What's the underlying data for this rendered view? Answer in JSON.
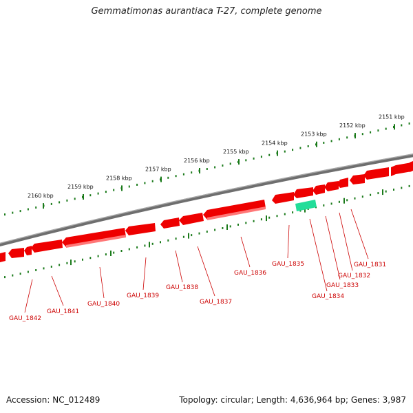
{
  "title": "Gemmatimonas aurantiaca T-27, complete genome",
  "footer": {
    "accession": "Accession: NC_012489",
    "summary": "Topology: circular; Length: 4,636,964 bp; Genes: 3,987"
  },
  "colors": {
    "backbone": "#7a7a7a",
    "gene": "#ee0000",
    "gene_highlight": "#ff6666",
    "rna_gene": "#22dd99",
    "ticks": "#1a7a1a",
    "labels": "#cc0000"
  },
  "scale": {
    "unit": "kbp",
    "ticks": [
      {
        "kbp": 2151,
        "label": "2151 kbp"
      },
      {
        "kbp": 2152,
        "label": "2152 kbp"
      },
      {
        "kbp": 2153,
        "label": "2153 kbp"
      },
      {
        "kbp": 2154,
        "label": "2154 kbp"
      },
      {
        "kbp": 2155,
        "label": "2155 kbp"
      },
      {
        "kbp": 2156,
        "label": "2156 kbp"
      },
      {
        "kbp": 2157,
        "label": "2157 kbp"
      },
      {
        "kbp": 2158,
        "label": "2158 kbp"
      },
      {
        "kbp": 2159,
        "label": "2159 kbp"
      },
      {
        "kbp": 2160,
        "label": "2160 kbp"
      }
    ]
  },
  "genes": [
    {
      "label": "GAU_1831",
      "type": "cds"
    },
    {
      "label": "GAU_1832",
      "type": "cds"
    },
    {
      "label": "GAU_1833",
      "type": "cds"
    },
    {
      "label": "GAU_1834",
      "type": "rna"
    },
    {
      "label": "GAU_1835",
      "type": "cds"
    },
    {
      "label": "GAU_1836",
      "type": "cds"
    },
    {
      "label": "GAU_1837",
      "type": "cds"
    },
    {
      "label": "GAU_1838",
      "type": "cds"
    },
    {
      "label": "GAU_1839",
      "type": "cds"
    },
    {
      "label": "GAU_1840",
      "type": "cds"
    },
    {
      "label": "GAU_1841",
      "type": "cds"
    },
    {
      "label": "GAU_1842",
      "type": "cds"
    }
  ]
}
